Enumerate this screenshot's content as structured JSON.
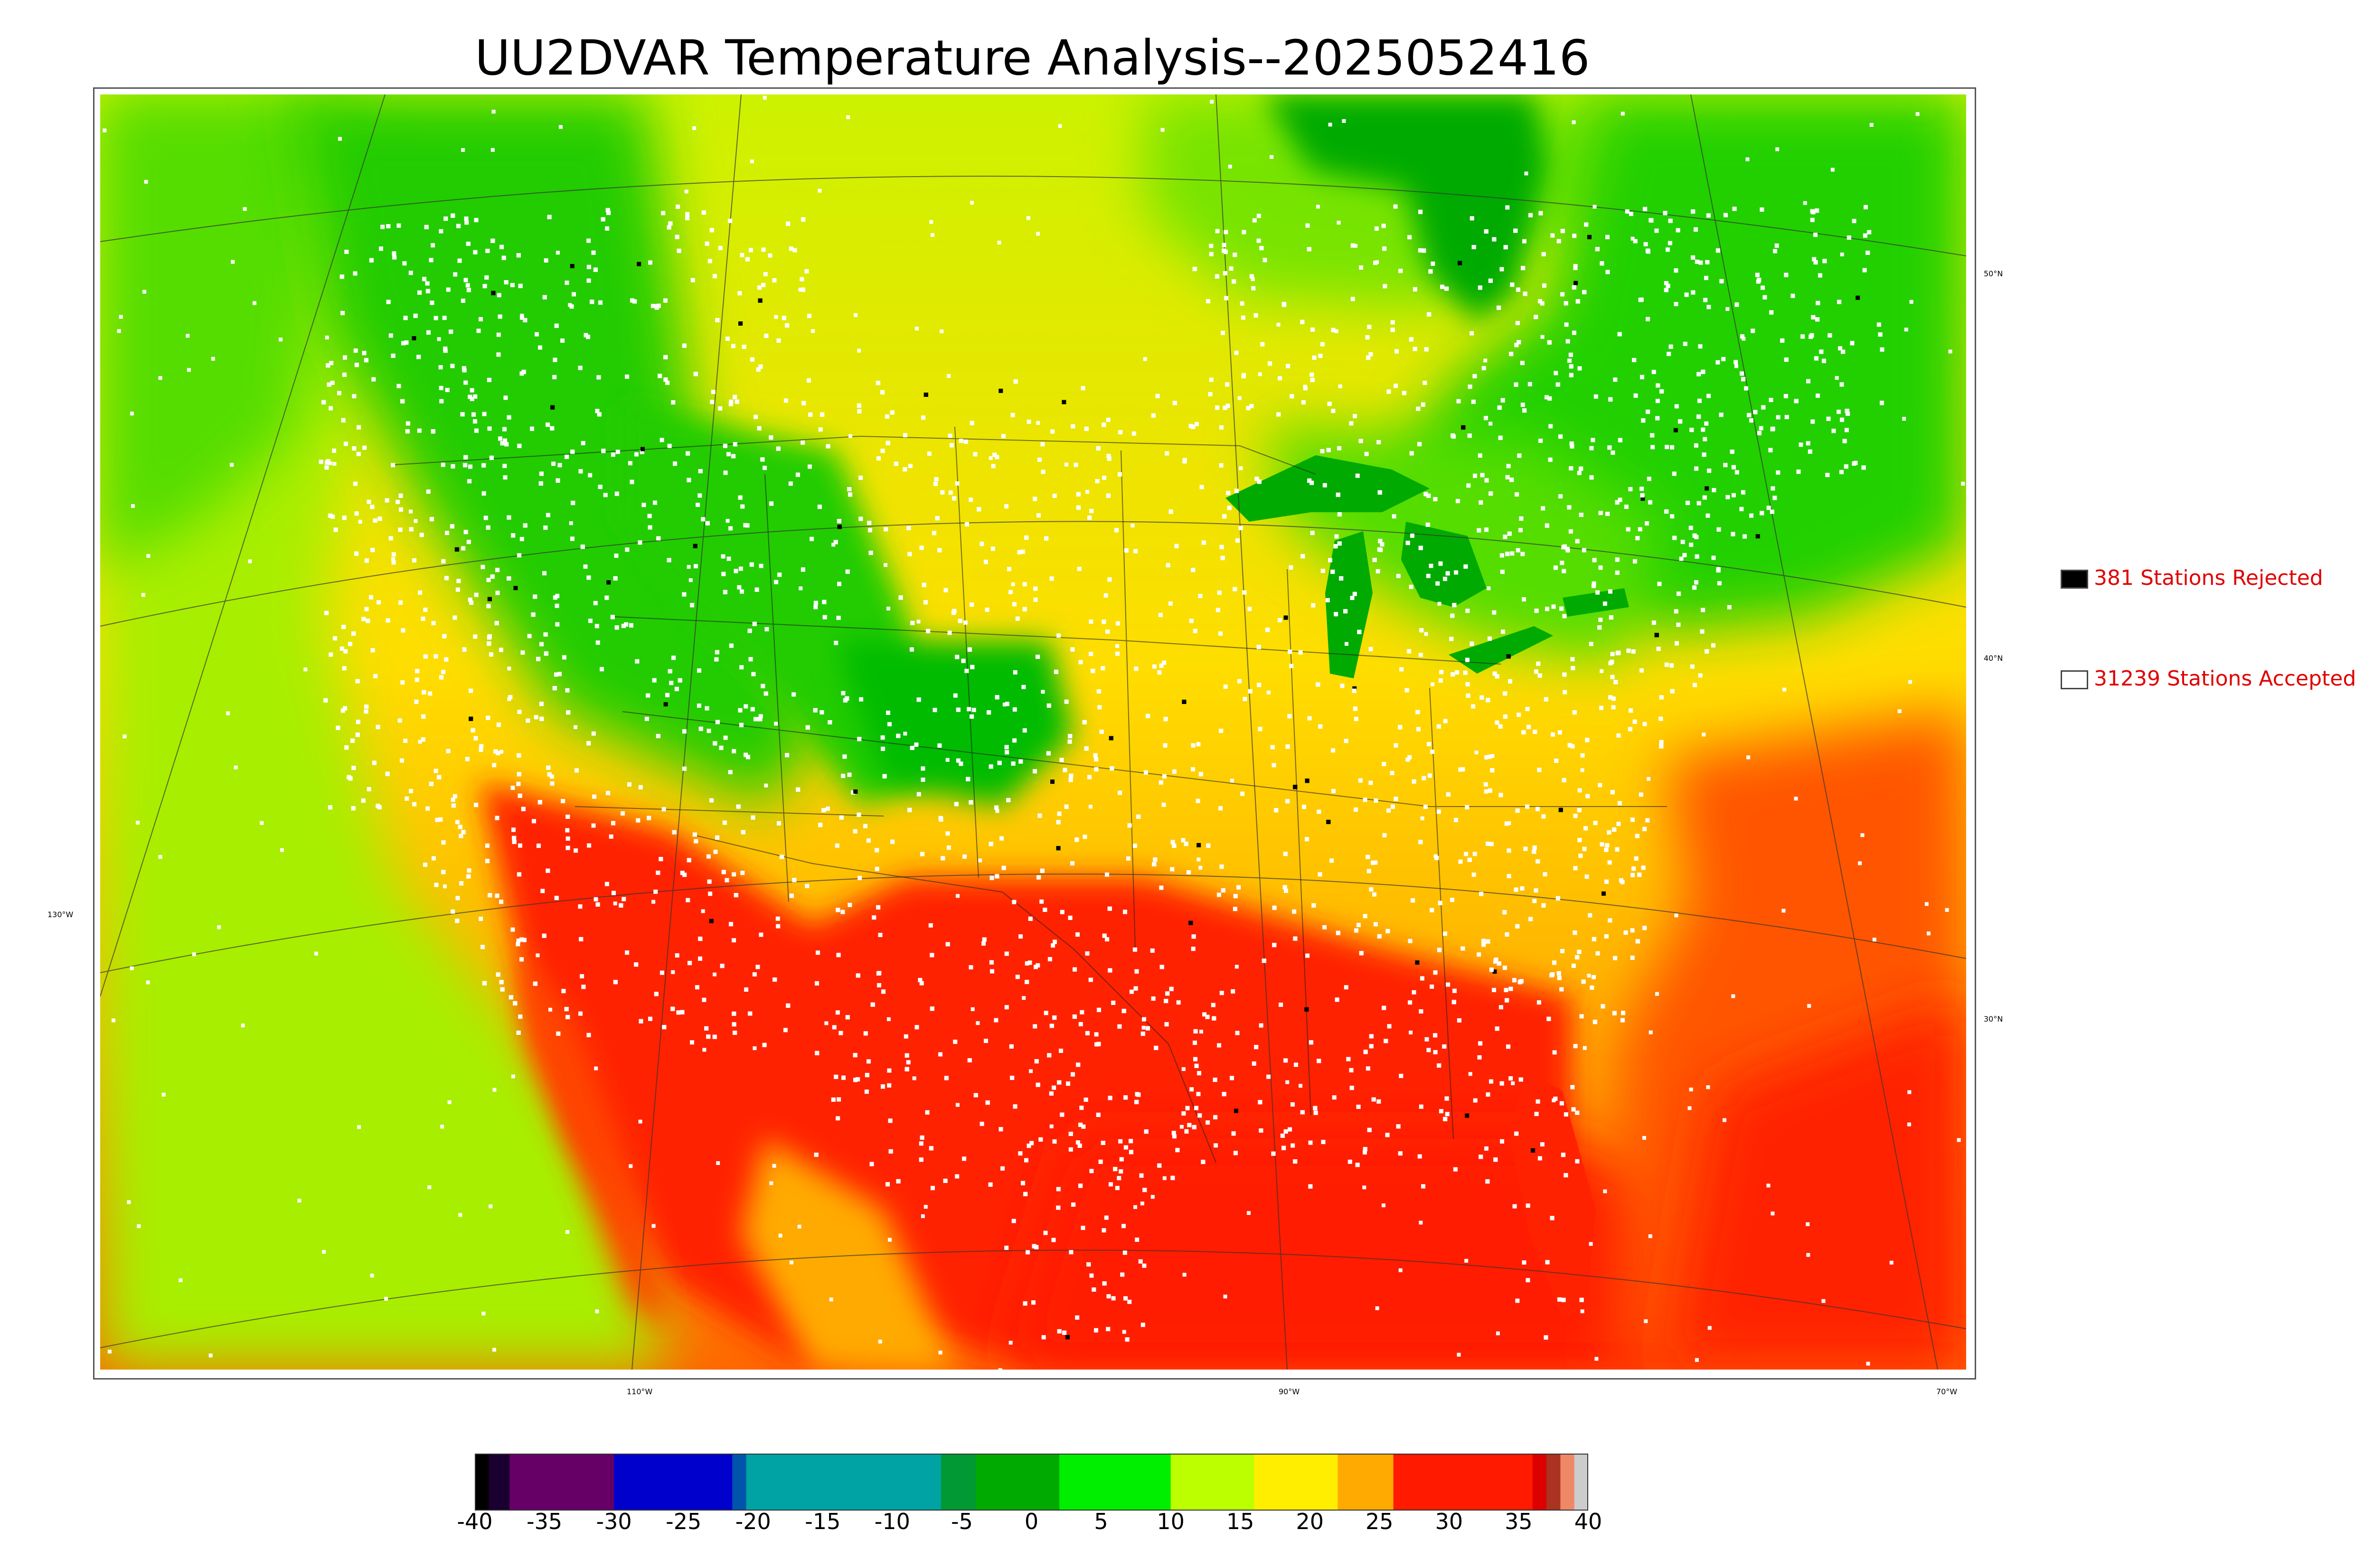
{
  "title": "UU2DVAR Temperature Analysis--2025052416",
  "legend": {
    "rejected": {
      "label": "381 Stations Rejected",
      "color": "#000000"
    },
    "accepted": {
      "label": "31239 Stations Accepted",
      "color": "#ffffff"
    }
  },
  "graticule": {
    "latitude_labels": [
      "50°N",
      "40°N",
      "30°N"
    ],
    "longitude_labels": [
      "130°W",
      "110°W",
      "90°W",
      "70°W"
    ]
  },
  "colorbar": {
    "ticks": [
      "-40",
      "-35",
      "-30",
      "-25",
      "-20",
      "-15",
      "-10",
      "-5",
      "0",
      "5",
      "10",
      "15",
      "20",
      "25",
      "30",
      "35",
      "40"
    ],
    "min": -40,
    "max": 40,
    "segments": [
      {
        "from": -40,
        "to": -39,
        "color": "#000000"
      },
      {
        "from": -39,
        "to": -37.5,
        "color": "#1a0030"
      },
      {
        "from": -37.5,
        "to": -30,
        "color": "#660066"
      },
      {
        "from": -30,
        "to": -21.5,
        "color": "#0000cc"
      },
      {
        "from": -21.5,
        "to": -20.5,
        "color": "#0055aa"
      },
      {
        "from": -20.5,
        "to": -6.5,
        "color": "#00a3a3"
      },
      {
        "from": -6.5,
        "to": -4,
        "color": "#009933"
      },
      {
        "from": -4,
        "to": 2,
        "color": "#00aa00"
      },
      {
        "from": 2,
        "to": 10,
        "color": "#00ee00"
      },
      {
        "from": 10,
        "to": 16,
        "color": "#bbff00"
      },
      {
        "from": 16,
        "to": 22,
        "color": "#ffee00"
      },
      {
        "from": 22,
        "to": 26,
        "color": "#ffaa00"
      },
      {
        "from": 26,
        "to": 36,
        "color": "#ff1a00"
      },
      {
        "from": 36,
        "to": 37,
        "color": "#dd0000"
      },
      {
        "from": 37,
        "to": 38,
        "color": "#aa3322"
      },
      {
        "from": 38,
        "to": 39,
        "color": "#ee8866"
      },
      {
        "from": 39,
        "to": 40,
        "color": "#cccccc"
      }
    ]
  },
  "colors": {
    "legend_text": "#e00000",
    "cold": "#00cc00",
    "mild": "#ccff00",
    "warm": "#ffcc00",
    "hot": "#ff2200",
    "station_accepted": "#ffffff",
    "station_rejected": "#000000"
  }
}
